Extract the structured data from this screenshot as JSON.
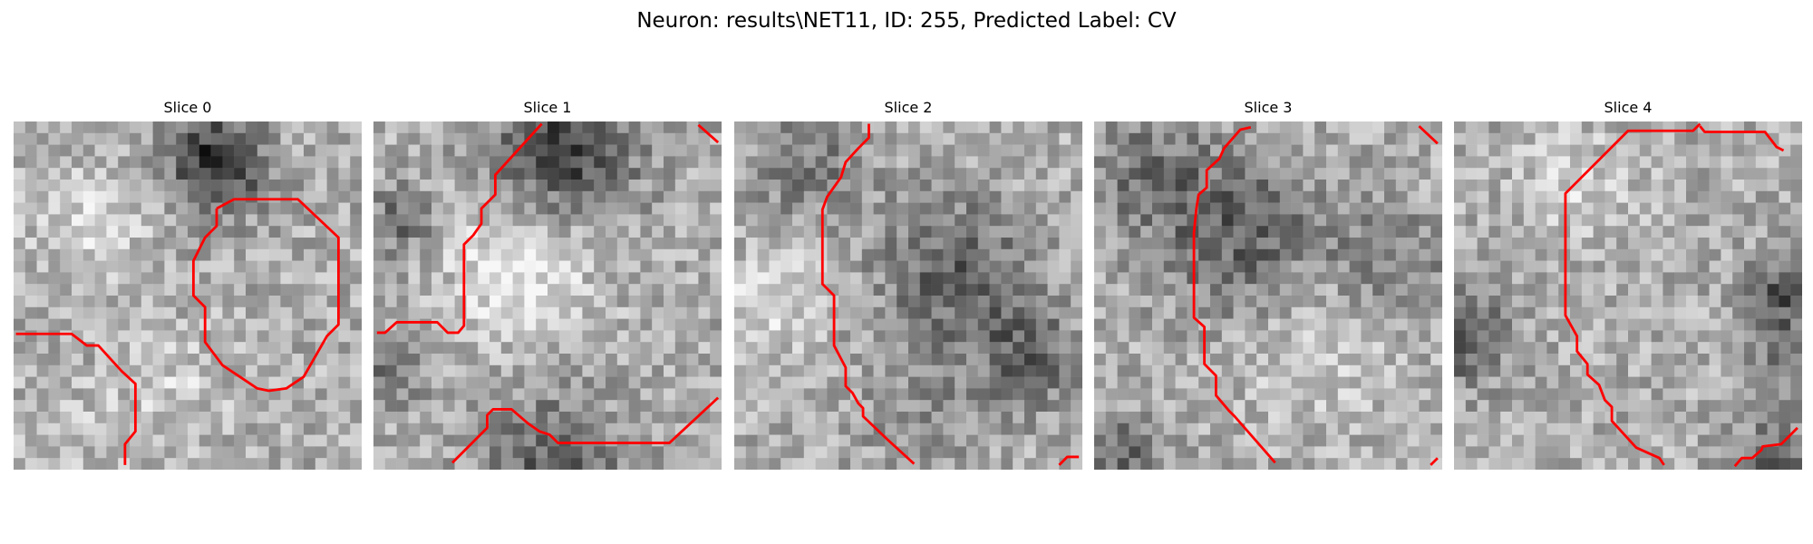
{
  "title": "Neuron: results\\NET11, ID: 255, Predicted Label: CV",
  "panels": [
    {
      "label": "Slice 0"
    },
    {
      "label": "Slice 1"
    },
    {
      "label": "Slice 2"
    },
    {
      "label": "Slice 3"
    },
    {
      "label": "Slice 4"
    }
  ],
  "colormap": "gray",
  "contour_color": "#ff0000"
}
